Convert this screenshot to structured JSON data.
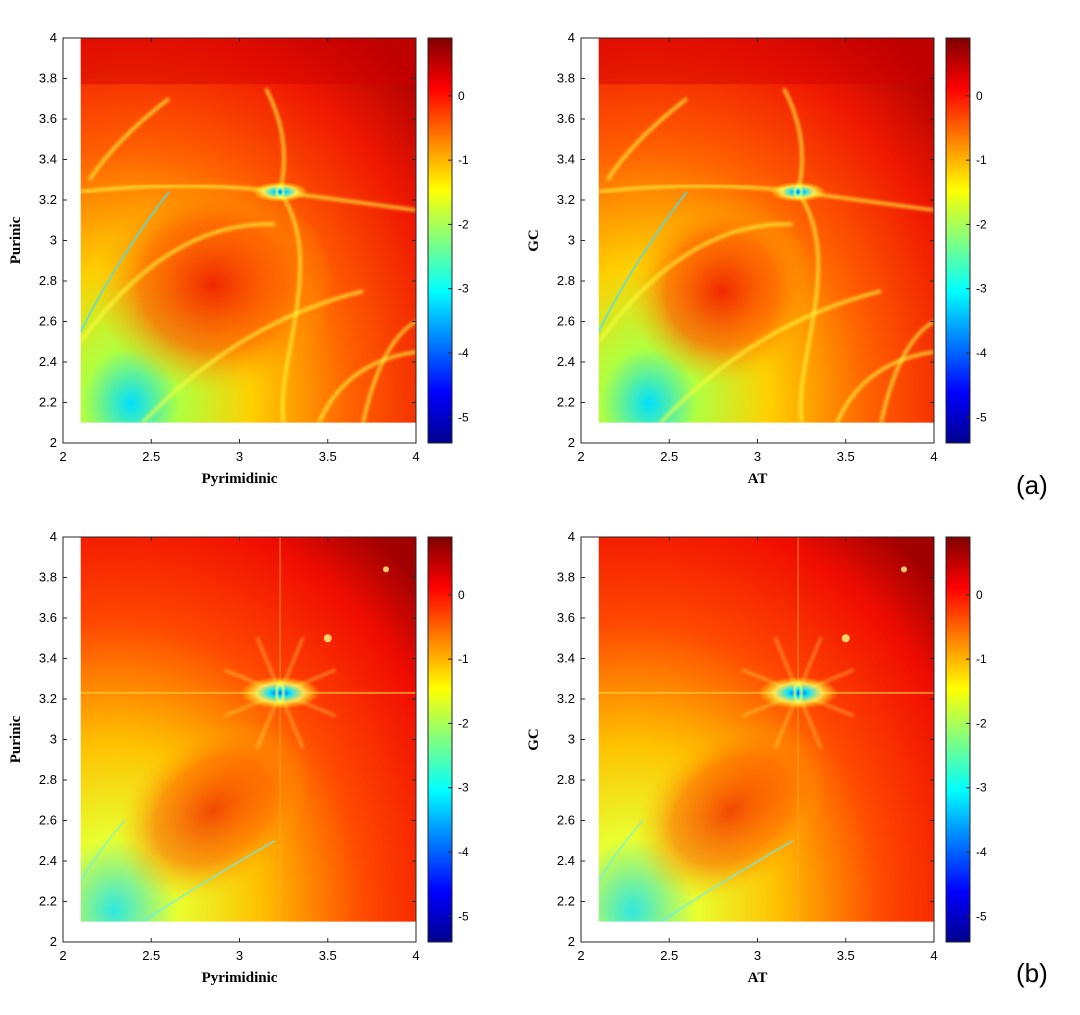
{
  "panel_labels": [
    "(a)",
    "(b)"
  ],
  "colormap": [
    "#00008f",
    "#0000ff",
    "#00b0ff",
    "#00ffff",
    "#80ff80",
    "#ffff00",
    "#ff8000",
    "#ff0000",
    "#800000"
  ],
  "chart_data": [
    {
      "type": "heatmap",
      "panel": "(a)",
      "xlabel": "Pyrimidinic",
      "ylabel": "Purinic",
      "xlim": [
        2,
        4
      ],
      "ylim": [
        2,
        4
      ],
      "xticks": [
        "2",
        "2.5",
        "3",
        "3.5",
        "4"
      ],
      "yticks": [
        "2",
        "2.2",
        "2.4",
        "2.6",
        "2.8",
        "3",
        "3.2",
        "3.4",
        "3.6",
        "3.8",
        "4"
      ],
      "colorbar_ticks": [
        "0",
        "-1",
        "-2",
        "-3",
        "-4",
        "-5"
      ],
      "colorbar_range": [
        -5.4,
        0.9
      ],
      "data_domain": [
        2.1,
        4
      ],
      "feature_point": [
        3.23,
        3.24
      ],
      "background": "fractal"
    },
    {
      "type": "heatmap",
      "panel": "(a)",
      "xlabel": "AT",
      "ylabel": "GC",
      "xlim": [
        2,
        4
      ],
      "ylim": [
        2,
        4
      ],
      "xticks": [
        "2",
        "2.5",
        "3",
        "3.5",
        "4"
      ],
      "yticks": [
        "2",
        "2.2",
        "2.4",
        "2.6",
        "2.8",
        "3",
        "3.2",
        "3.4",
        "3.6",
        "3.8",
        "4"
      ],
      "colorbar_ticks": [
        "0",
        "-1",
        "-2",
        "-3",
        "-4",
        "-5"
      ],
      "colorbar_range": [
        -5.4,
        0.9
      ],
      "data_domain": [
        2.1,
        4
      ],
      "feature_point": [
        3.23,
        3.24
      ],
      "background": "fractal"
    },
    {
      "type": "heatmap",
      "panel": "(b)",
      "xlabel": "Pyrimidinic",
      "ylabel": "Purinic",
      "xlim": [
        2,
        4
      ],
      "ylim": [
        2,
        4
      ],
      "xticks": [
        "2",
        "2.5",
        "3",
        "3.5",
        "4"
      ],
      "yticks": [
        "2",
        "2.2",
        "2.4",
        "2.6",
        "2.8",
        "3",
        "3.2",
        "3.4",
        "3.6",
        "3.8",
        "4"
      ],
      "colorbar_ticks": [
        "0",
        "-1",
        "-2",
        "-3",
        "-4",
        "-5"
      ],
      "colorbar_range": [
        -5.4,
        0.9
      ],
      "data_domain": [
        2.1,
        4
      ],
      "feature_point": [
        3.23,
        3.23
      ],
      "background": "smooth"
    },
    {
      "type": "heatmap",
      "panel": "(b)",
      "xlabel": "AT",
      "ylabel": "GC",
      "xlim": [
        2,
        4
      ],
      "ylim": [
        2,
        4
      ],
      "xticks": [
        "2",
        "2.5",
        "3",
        "3.5",
        "4"
      ],
      "yticks": [
        "2",
        "2.2",
        "2.4",
        "2.6",
        "2.8",
        "3",
        "3.2",
        "3.4",
        "3.6",
        "3.8",
        "4"
      ],
      "colorbar_ticks": [
        "0",
        "-1",
        "-2",
        "-3",
        "-4",
        "-5"
      ],
      "colorbar_range": [
        -5.4,
        0.9
      ],
      "data_domain": [
        2.1,
        4
      ],
      "feature_point": [
        3.23,
        3.23
      ],
      "background": "smooth"
    }
  ]
}
